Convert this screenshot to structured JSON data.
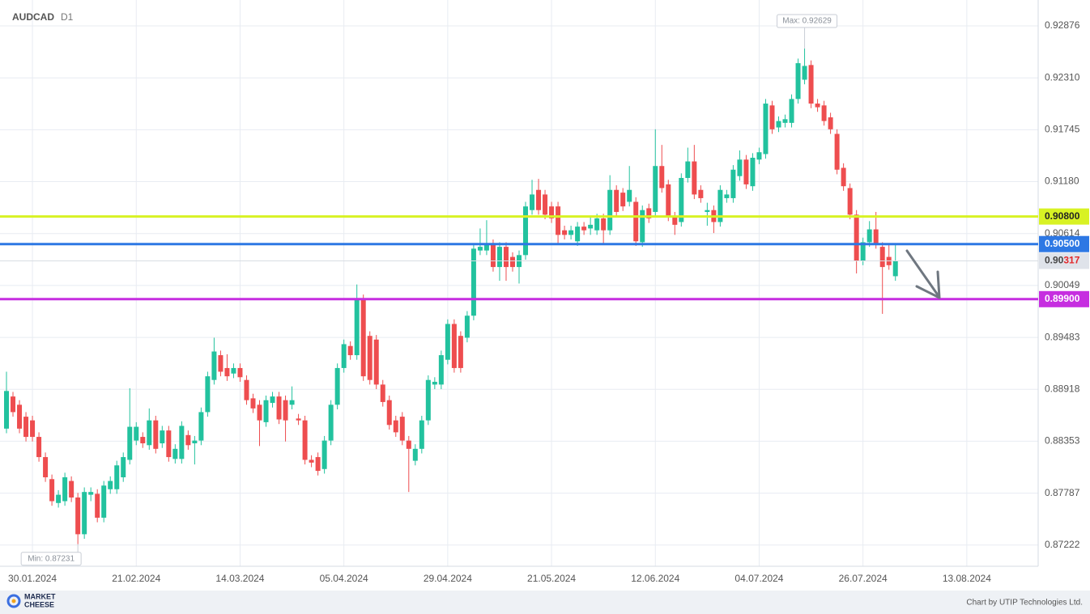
{
  "chart_data": {
    "type": "candlestick",
    "title": "AUDCAD",
    "timeframe": "D1",
    "up_color": "#22c29e",
    "down_color": "#ee4d4f",
    "xlim": [
      -1,
      159
    ],
    "ylim": [
      0.86991,
      0.93158
    ],
    "grid": true,
    "xticks": [
      {
        "value": 4,
        "label": "30.01.2024"
      },
      {
        "value": 20,
        "label": "21.02.2024"
      },
      {
        "value": 36,
        "label": "14.03.2024"
      },
      {
        "value": 52,
        "label": "05.04.2024"
      },
      {
        "value": 68,
        "label": "29.04.2024"
      },
      {
        "value": 84,
        "label": "21.05.2024"
      },
      {
        "value": 100,
        "label": "12.06.2024"
      },
      {
        "value": 116,
        "label": "04.07.2024"
      },
      {
        "value": 132,
        "label": "26.07.2024"
      },
      {
        "value": 148,
        "label": "13.08.2024"
      }
    ],
    "yticks": [
      0.92876,
      {
        "value": 0.9231,
        "label": "0.92310"
      },
      0.91745,
      {
        "value": 0.9118,
        "label": "0.91180"
      },
      0.90614,
      0.90049,
      0.89483,
      0.88918,
      0.88353,
      0.87787,
      0.87222
    ],
    "open": [
      0.8849,
      0.8884,
      0.8875,
      0.8862,
      0.8858,
      0.884,
      0.8818,
      0.8794,
      0.8768,
      0.877,
      0.8792,
      0.8774,
      0.8734,
      0.8777,
      0.8778,
      0.8752,
      0.8783,
      0.8783,
      0.8796,
      0.8815,
      0.8836,
      0.884,
      0.8831,
      0.8858,
      0.8833,
      0.8847,
      0.8816,
      0.8816,
      0.8842,
      0.8833,
      0.8836,
      0.8867,
      0.8902,
      0.8929,
      0.8915,
      0.8909,
      0.8915,
      0.8902,
      0.8882,
      0.8875,
      0.8856,
      0.8877,
      0.8884,
      0.888,
      0.8875,
      0.886,
      0.8858,
      0.8815,
      0.8818,
      0.8805,
      0.8836,
      0.8875,
      0.8915,
      0.8939,
      0.8929,
      0.899,
      0.895,
      0.8946,
      0.8897,
      0.888,
      0.8858,
      0.8862,
      0.8836,
      0.8814,
      0.8827,
      0.8858,
      0.8897,
      0.8897,
      0.8924,
      0.8963,
      0.895,
      0.8948,
      0.8972,
      0.9043,
      0.9043,
      0.905,
      0.9025,
      0.9047,
      0.9036,
      0.9025,
      0.9038,
      0.9087,
      0.9109,
      0.9104,
      0.9091,
      0.9091,
      0.9065,
      0.906,
      0.9053,
      0.9069,
      0.9067,
      0.9065,
      0.9078,
      0.9065,
      0.9109,
      0.9106,
      0.9096,
      0.9096,
      0.9052,
      0.9089,
      0.9085,
      0.9135,
      0.9115,
      0.908,
      0.9074,
      0.9122,
      0.914,
      0.9109,
      0.9085,
      0.9087,
      0.9074,
      0.91,
      0.91,
      0.9124,
      0.9142,
      0.9113,
      0.9142,
      0.9148,
      0.9201,
      0.9177,
      0.9182,
      0.9182,
      0.9208,
      0.9229,
      0.9245,
      0.9203,
      0.9201,
      0.9188,
      0.917,
      0.9133,
      0.9111,
      0.9082,
      0.9032,
      0.9052,
      0.9066,
      0.9047,
      0.9036,
      0.9015
    ],
    "high": [
      0.8911,
      0.8889,
      0.888,
      0.8867,
      0.8863,
      0.8845,
      0.8823,
      0.8799,
      0.8782,
      0.8801,
      0.8797,
      0.8779,
      0.8785,
      0.8785,
      0.8783,
      0.8792,
      0.8797,
      0.8814,
      0.8823,
      0.8893,
      0.8856,
      0.8845,
      0.8871,
      0.8863,
      0.8852,
      0.8852,
      0.8832,
      0.8857,
      0.8847,
      0.8841,
      0.8872,
      0.8911,
      0.8948,
      0.8934,
      0.893,
      0.892,
      0.892,
      0.8907,
      0.8887,
      0.888,
      0.8885,
      0.8889,
      0.8889,
      0.8885,
      0.8895,
      0.8865,
      0.8863,
      0.882,
      0.8823,
      0.8841,
      0.888,
      0.892,
      0.8946,
      0.8944,
      0.9006,
      0.8995,
      0.8955,
      0.8951,
      0.8902,
      0.8885,
      0.8863,
      0.8867,
      0.8841,
      0.8832,
      0.8863,
      0.8907,
      0.8905,
      0.8934,
      0.8968,
      0.8968,
      0.8955,
      0.8977,
      0.905,
      0.9067,
      0.9076,
      0.9055,
      0.9052,
      0.9052,
      0.9041,
      0.9043,
      0.9096,
      0.912,
      0.9121,
      0.9109,
      0.9096,
      0.9096,
      0.907,
      0.907,
      0.9074,
      0.9074,
      0.908,
      0.9083,
      0.9083,
      0.9125,
      0.9114,
      0.9111,
      0.9135,
      0.9101,
      0.9092,
      0.9094,
      0.9175,
      0.9158,
      0.912,
      0.9085,
      0.9127,
      0.9155,
      0.9158,
      0.9114,
      0.9095,
      0.9092,
      0.9114,
      0.9109,
      0.9136,
      0.9152,
      0.9147,
      0.9149,
      0.9155,
      0.9208,
      0.9206,
      0.9189,
      0.9191,
      0.9213,
      0.9252,
      0.92629,
      0.925,
      0.9208,
      0.9206,
      0.9193,
      0.9175,
      0.9138,
      0.9116,
      0.9087,
      0.9057,
      0.9075,
      0.9085,
      0.9052,
      0.905,
      0.905
    ],
    "low": [
      0.8844,
      0.8862,
      0.8844,
      0.8835,
      0.8835,
      0.8813,
      0.8791,
      0.8765,
      0.8763,
      0.8765,
      0.8769,
      0.87231,
      0.8729,
      0.877,
      0.8747,
      0.8747,
      0.8778,
      0.8778,
      0.8791,
      0.881,
      0.8831,
      0.8828,
      0.8826,
      0.8822,
      0.8828,
      0.8813,
      0.8811,
      0.8811,
      0.8826,
      0.881,
      0.8831,
      0.8862,
      0.8897,
      0.8906,
      0.8901,
      0.8904,
      0.89,
      0.8875,
      0.8866,
      0.883,
      0.8851,
      0.8872,
      0.8854,
      0.8835,
      0.887,
      0.8853,
      0.881,
      0.8807,
      0.8798,
      0.88,
      0.8831,
      0.887,
      0.891,
      0.8924,
      0.8924,
      0.8901,
      0.8897,
      0.8892,
      0.8873,
      0.8848,
      0.884,
      0.8831,
      0.878,
      0.8809,
      0.8822,
      0.8853,
      0.8892,
      0.8892,
      0.8919,
      0.891,
      0.891,
      0.8943,
      0.8967,
      0.9038,
      0.9038,
      0.902,
      0.901,
      0.901,
      0.902,
      0.9007,
      0.9033,
      0.9082,
      0.9082,
      0.9077,
      0.9073,
      0.905,
      0.9055,
      0.9055,
      0.9048,
      0.906,
      0.906,
      0.906,
      0.905,
      0.906,
      0.908,
      0.9086,
      0.9091,
      0.9048,
      0.9047,
      0.9073,
      0.908,
      0.9106,
      0.9075,
      0.906,
      0.9069,
      0.9117,
      0.9099,
      0.9095,
      0.907,
      0.9062,
      0.9069,
      0.9095,
      0.9095,
      0.9119,
      0.911,
      0.9108,
      0.9137,
      0.9143,
      0.917,
      0.9172,
      0.9177,
      0.9177,
      0.9203,
      0.9224,
      0.9198,
      0.9194,
      0.9179,
      0.917,
      0.9126,
      0.9108,
      0.9077,
      0.9018,
      0.9027,
      0.9047,
      0.9045,
      0.8974,
      0.9022,
      0.901
    ],
    "close": [
      0.889,
      0.8867,
      0.8849,
      0.884,
      0.884,
      0.8818,
      0.8796,
      0.877,
      0.8777,
      0.8796,
      0.8774,
      0.8734,
      0.878,
      0.878,
      0.8752,
      0.8787,
      0.8792,
      0.8809,
      0.8818,
      0.8851,
      0.8851,
      0.8833,
      0.8858,
      0.8827,
      0.8847,
      0.8818,
      0.8827,
      0.8852,
      0.8831,
      0.8836,
      0.8867,
      0.8906,
      0.8933,
      0.8911,
      0.8906,
      0.8915,
      0.8905,
      0.888,
      0.8871,
      0.8858,
      0.888,
      0.8884,
      0.8859,
      0.8858,
      0.888,
      0.8858,
      0.8815,
      0.8812,
      0.8803,
      0.8836,
      0.8875,
      0.8915,
      0.8941,
      0.8929,
      0.899,
      0.8906,
      0.8902,
      0.8897,
      0.8878,
      0.8853,
      0.8845,
      0.8836,
      0.8827,
      0.8827,
      0.8858,
      0.8902,
      0.89,
      0.8929,
      0.8963,
      0.8915,
      0.8915,
      0.8972,
      0.9045,
      0.9047,
      0.905,
      0.9025,
      0.9047,
      0.9025,
      0.9025,
      0.9038,
      0.9091,
      0.9104,
      0.9087,
      0.9082,
      0.9078,
      0.906,
      0.906,
      0.9065,
      0.9069,
      0.9065,
      0.9071,
      0.9078,
      0.9065,
      0.9109,
      0.9085,
      0.9091,
      0.9109,
      0.9053,
      0.9087,
      0.9078,
      0.9135,
      0.9111,
      0.908,
      0.9071,
      0.9122,
      0.914,
      0.9104,
      0.91,
      0.9087,
      0.9074,
      0.9109,
      0.9104,
      0.9131,
      0.9142,
      0.9115,
      0.9144,
      0.915,
      0.9203,
      0.9175,
      0.9184,
      0.9186,
      0.9208,
      0.9247,
      0.9244,
      0.9203,
      0.9199,
      0.9184,
      0.9175,
      0.9131,
      0.9113,
      0.9082,
      0.9032,
      0.9052,
      0.9066,
      0.905,
      0.9025,
      0.9027,
      0.90317
    ],
    "levels": [
      {
        "value": 0.908,
        "label": "0.90800",
        "color": "#d8f224",
        "text_color": "#222"
      },
      {
        "value": 0.905,
        "label": "0.90500",
        "color": "#2d78e4",
        "text_color": "#fff"
      },
      {
        "value": 0.899,
        "label": "0.89900",
        "color": "#c62ee0",
        "text_color": "#fff"
      }
    ],
    "current": {
      "value": 0.90317,
      "label": "0.90317"
    },
    "annotations": {
      "max": {
        "value": 0.92629,
        "label": "Max: 0.92629"
      },
      "min": {
        "value": 0.87231,
        "label": "Min: 0.87231"
      }
    }
  },
  "footer": {
    "logo": [
      "MARKET",
      "CHEESE"
    ],
    "credit": "Chart by UTIP Technologies Ltd."
  }
}
